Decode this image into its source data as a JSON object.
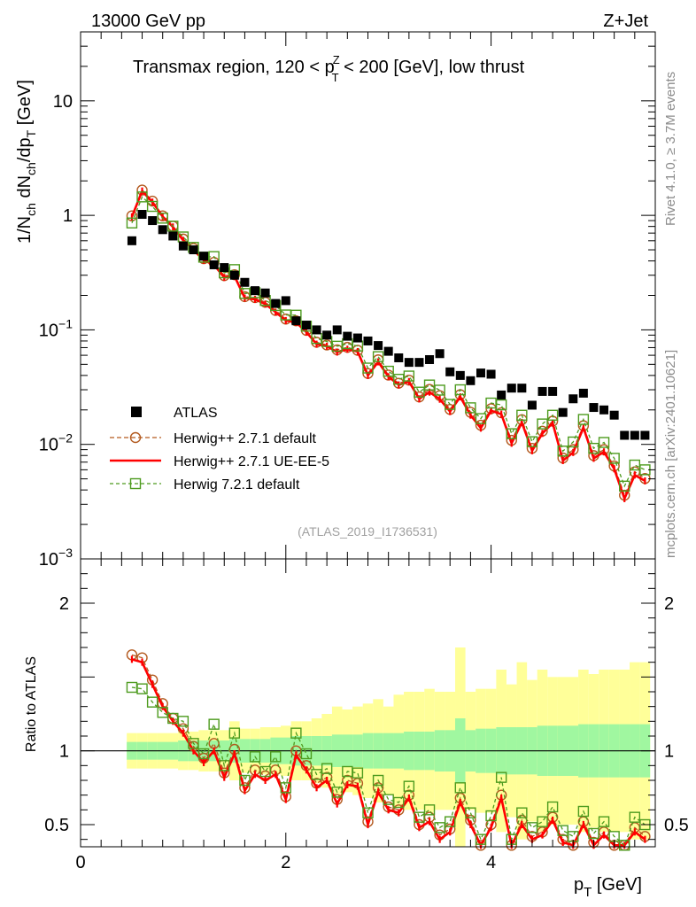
{
  "header": {
    "left": "13000 GeV pp",
    "right": "Z+Jet"
  },
  "plot_title": {
    "pre": "Transmax region, 120 < p",
    "sup": "Z",
    "sub": "T",
    "post": " < 200 [GeV], low thrust"
  },
  "side_texts": {
    "rivet": "Rivet 4.1.0, ≥ 3.7M events",
    "mcplots": "mcplots.cern.ch [arXiv:2401.10621]"
  },
  "watermark": "(ATLAS_2019_I1736531)",
  "colors": {
    "atlas": "#000000",
    "herwig271": "#b35a1f",
    "ueee5": "#ff0000",
    "herwig721": "#4d9b1e",
    "band_green": "#a0f7a0",
    "band_yellow": "#ffff99"
  },
  "chart_data": {
    "type": "scatter",
    "xlabel": "p_T [GeV]",
    "xlim": [
      0,
      5.6
    ],
    "x_ticks": [
      "0",
      "2",
      "4"
    ],
    "main": {
      "ylabel": "1/N_ch dN_ch/dp_T [GeV]",
      "yscale": "log",
      "ylim": [
        0.001,
        40
      ],
      "y_ticks": [
        {
          "value": 10,
          "label": "10"
        },
        {
          "value": 1,
          "label": "1"
        },
        {
          "value": 0.1,
          "base": "10",
          "exp": "−1"
        },
        {
          "value": 0.01,
          "base": "10",
          "exp": "−2"
        },
        {
          "value": 0.001,
          "base": "10",
          "exp": "−3"
        }
      ]
    },
    "ratio": {
      "ylabel": "Ratio to ATLAS",
      "ylim": [
        0.35,
        2.3
      ],
      "y_ticks": [
        "0.5",
        "1",
        "2"
      ]
    },
    "x": [
      0.5,
      0.6,
      0.7,
      0.8,
      0.9,
      1.0,
      1.1,
      1.2,
      1.3,
      1.4,
      1.5,
      1.6,
      1.7,
      1.8,
      1.9,
      2.0,
      2.1,
      2.2,
      2.3,
      2.4,
      2.5,
      2.6,
      2.7,
      2.8,
      2.9,
      3.0,
      3.1,
      3.2,
      3.3,
      3.4,
      3.5,
      3.6,
      3.7,
      3.8,
      3.9,
      4.0,
      4.1,
      4.2,
      4.3,
      4.4,
      4.5,
      4.6,
      4.7,
      4.8,
      4.9,
      5.0,
      5.1,
      5.2,
      5.3,
      5.4,
      5.5
    ],
    "legend": [
      {
        "name": "ATLAS"
      },
      {
        "name": "Herwig++ 2.7.1 default"
      },
      {
        "name": "Herwig++ 2.7.1 UE-EE-5"
      },
      {
        "name": "Herwig 7.2.1 default"
      }
    ],
    "series": [
      {
        "name": "ATLAS",
        "values": [
          0.6,
          1.02,
          0.9,
          0.75,
          0.66,
          0.54,
          0.5,
          0.44,
          0.37,
          0.35,
          0.3,
          0.26,
          0.22,
          0.21,
          0.17,
          0.18,
          0.12,
          0.11,
          0.1,
          0.09,
          0.1,
          0.088,
          0.085,
          0.08,
          0.073,
          0.065,
          0.057,
          0.052,
          0.052,
          0.055,
          0.062,
          0.043,
          0.04,
          0.036,
          0.042,
          0.041,
          0.027,
          0.031,
          0.031,
          0.022,
          0.029,
          0.029,
          0.019,
          0.025,
          0.028,
          0.021,
          0.02,
          0.018,
          0.012,
          0.012,
          0.012
        ]
      },
      {
        "name": "Herwig++ 2.7.1 default",
        "ratio": [
          1.65,
          1.63,
          1.48,
          1.32,
          1.22,
          1.15,
          1.03,
          0.95,
          1.05,
          0.85,
          1.01,
          0.75,
          0.87,
          0.83,
          0.87,
          0.69,
          1.0,
          0.9,
          0.78,
          0.82,
          0.67,
          0.8,
          0.78,
          0.52,
          0.75,
          0.62,
          0.6,
          0.7,
          0.5,
          0.55,
          0.43,
          0.47,
          0.68,
          0.53,
          0.35,
          0.5,
          0.7,
          0.35,
          0.53,
          0.42,
          0.45,
          0.55,
          0.4,
          0.36,
          0.52,
          0.38,
          0.45,
          0.36,
          0.3,
          0.48,
          0.42
        ]
      },
      {
        "name": "Herwig++ 2.7.1 UE-EE-5",
        "ratio": [
          1.62,
          1.6,
          1.45,
          1.3,
          1.2,
          1.12,
          1.0,
          0.92,
          1.0,
          0.82,
          0.98,
          0.73,
          0.84,
          0.8,
          0.84,
          0.67,
          0.97,
          0.87,
          0.75,
          0.8,
          0.64,
          0.77,
          0.76,
          0.5,
          0.72,
          0.6,
          0.58,
          0.68,
          0.48,
          0.52,
          0.4,
          0.45,
          0.65,
          0.5,
          0.33,
          0.48,
          0.68,
          0.33,
          0.5,
          0.4,
          0.43,
          0.53,
          0.38,
          0.34,
          0.5,
          0.36,
          0.43,
          0.34,
          0.28,
          0.45,
          0.4
        ]
      },
      {
        "name": "Herwig 7.2.1 default",
        "ratio": [
          1.43,
          1.42,
          1.33,
          1.26,
          1.22,
          1.2,
          1.05,
          0.98,
          1.18,
          0.9,
          1.12,
          0.8,
          0.96,
          0.86,
          0.96,
          0.75,
          1.12,
          0.98,
          0.84,
          0.88,
          0.72,
          0.86,
          0.85,
          0.58,
          0.8,
          0.67,
          0.65,
          0.76,
          0.55,
          0.6,
          0.48,
          0.52,
          0.75,
          0.58,
          0.4,
          0.56,
          0.82,
          0.4,
          0.58,
          0.48,
          0.52,
          0.62,
          0.46,
          0.42,
          0.59,
          0.44,
          0.52,
          0.42,
          0.36,
          0.55,
          0.5
        ]
      }
    ],
    "green_band_halfwidth": [
      0.06,
      0.06,
      0.06,
      0.06,
      0.06,
      0.07,
      0.07,
      0.07,
      0.07,
      0.07,
      0.08,
      0.08,
      0.08,
      0.08,
      0.09,
      0.09,
      0.1,
      0.1,
      0.1,
      0.1,
      0.11,
      0.11,
      0.11,
      0.12,
      0.12,
      0.12,
      0.12,
      0.13,
      0.13,
      0.13,
      0.14,
      0.14,
      0.22,
      0.14,
      0.15,
      0.15,
      0.16,
      0.16,
      0.16,
      0.16,
      0.17,
      0.17,
      0.17,
      0.17,
      0.18,
      0.18,
      0.18,
      0.18,
      0.18,
      0.18,
      0.18
    ],
    "yellow_band_halfwidth": [
      0.12,
      0.12,
      0.12,
      0.12,
      0.12,
      0.13,
      0.13,
      0.14,
      0.14,
      0.14,
      0.2,
      0.15,
      0.15,
      0.16,
      0.16,
      0.17,
      0.2,
      0.2,
      0.22,
      0.25,
      0.3,
      0.28,
      0.3,
      0.32,
      0.35,
      0.3,
      0.38,
      0.4,
      0.4,
      0.42,
      0.4,
      0.4,
      0.7,
      0.4,
      0.42,
      0.42,
      0.55,
      0.45,
      0.6,
      0.48,
      0.55,
      0.5,
      0.5,
      0.5,
      0.55,
      0.52,
      0.55,
      0.55,
      0.55,
      0.6,
      0.6
    ]
  }
}
